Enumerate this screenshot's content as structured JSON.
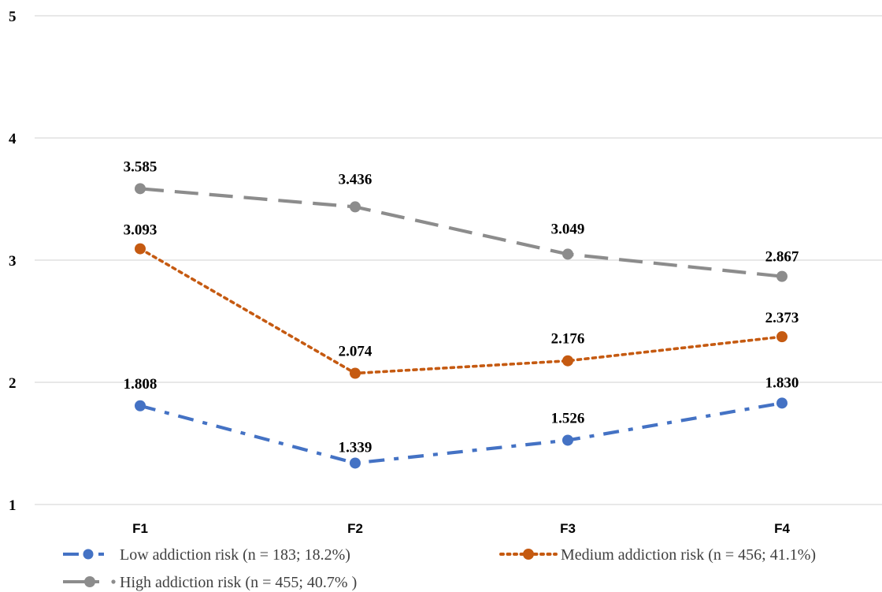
{
  "chart_data": {
    "type": "line",
    "categories": [
      "F1",
      "F2",
      "F3",
      "F4"
    ],
    "ylim": [
      1,
      5
    ],
    "yticks": [
      "1",
      "2",
      "3",
      "4",
      "5"
    ],
    "grid": true,
    "legend_position": "bottom",
    "series": [
      {
        "name": "Low addiction risk (n = 183; 18.2%)",
        "values": [
          1.808,
          1.339,
          1.526,
          1.83
        ],
        "labels": [
          "1.808",
          "1.339",
          "1.526",
          "1.830"
        ],
        "color": "#4472c4",
        "dash": "dash-dot"
      },
      {
        "name": "Medium addiction risk (n = 456; 41.1%)",
        "values": [
          3.093,
          2.074,
          2.176,
          2.373
        ],
        "labels": [
          "3.093",
          "2.074",
          "2.176",
          "2.373"
        ],
        "color": "#c55a11",
        "dash": "dotted"
      },
      {
        "name": "High addiction risk (n = 455; 40.7% )",
        "values": [
          3.585,
          3.436,
          3.049,
          2.867
        ],
        "labels": [
          "3.585",
          "3.436",
          "3.049",
          "2.867"
        ],
        "color": "#8c8c8c",
        "dash": "long-dash"
      }
    ]
  }
}
